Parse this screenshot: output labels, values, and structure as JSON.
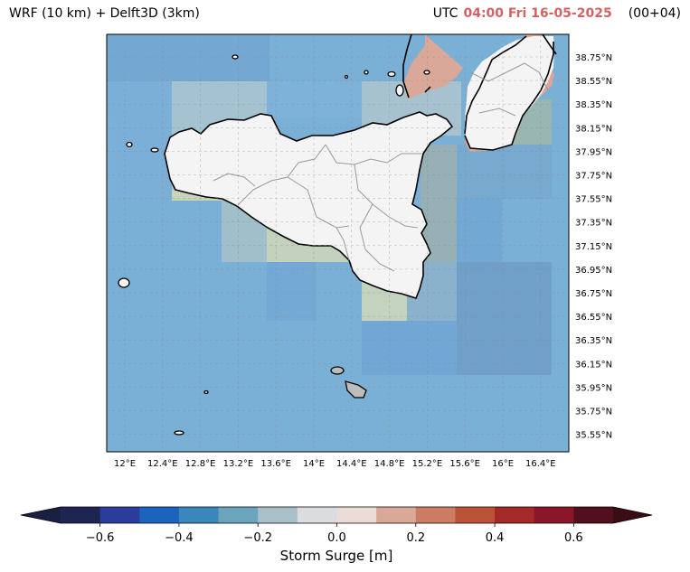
{
  "header": {
    "title_left": "WRF (10 km) + Delft3D (3km)",
    "utc_label": "UTC",
    "timestamp": "04:00 Fri 16-05-2025",
    "lead": "(00+04)",
    "timestamp_color": "#d06464"
  },
  "map": {
    "lat_labels": [
      "38.75°N",
      "38.55°N",
      "38.35°N",
      "38.15°N",
      "37.95°N",
      "37.75°N",
      "37.55°N",
      "37.35°N",
      "37.15°N",
      "36.95°N",
      "36.75°N",
      "36.55°N",
      "36.35°N",
      "36.15°N",
      "35.95°N",
      "35.75°N",
      "35.55°N"
    ],
    "lon_labels": [
      "12°E",
      "12.4°E",
      "12.8°E",
      "13.2°E",
      "13.6°E",
      "14°E",
      "14.4°E",
      "14.8°E",
      "15.2°E",
      "15.6°E",
      "16°E",
      "16.4°E"
    ],
    "extent_lon": [
      11.85,
      16.6
    ],
    "extent_lat": [
      35.4,
      38.87
    ],
    "land_color": "#f4f4f4",
    "sea_color": "#7aafd6"
  },
  "colorbar": {
    "label": "Storm Surge [m]",
    "ticks": [
      "−0.6",
      "−0.4",
      "−0.2",
      "0.0",
      "0.2",
      "0.4",
      "0.6"
    ],
    "tick_values": [
      -0.6,
      -0.4,
      -0.2,
      0.0,
      0.2,
      0.4,
      0.6
    ],
    "bin_edges": [
      -0.7,
      -0.6,
      -0.5,
      -0.4,
      -0.3,
      -0.2,
      -0.1,
      0,
      0.1,
      0.2,
      0.3,
      0.4,
      0.5,
      0.6,
      0.7
    ],
    "colors": [
      "#1f2552",
      "#2a3c9c",
      "#1b63be",
      "#3a86bd",
      "#6aa4bd",
      "#a9c0cb",
      "#dadcde",
      "#ecdcd8",
      "#d9a896",
      "#cd7c64",
      "#bb5338",
      "#a32a26",
      "#891629",
      "#52101e"
    ],
    "extend_low_color": "#1a1f44",
    "extend_high_color": "#3a0c14"
  }
}
